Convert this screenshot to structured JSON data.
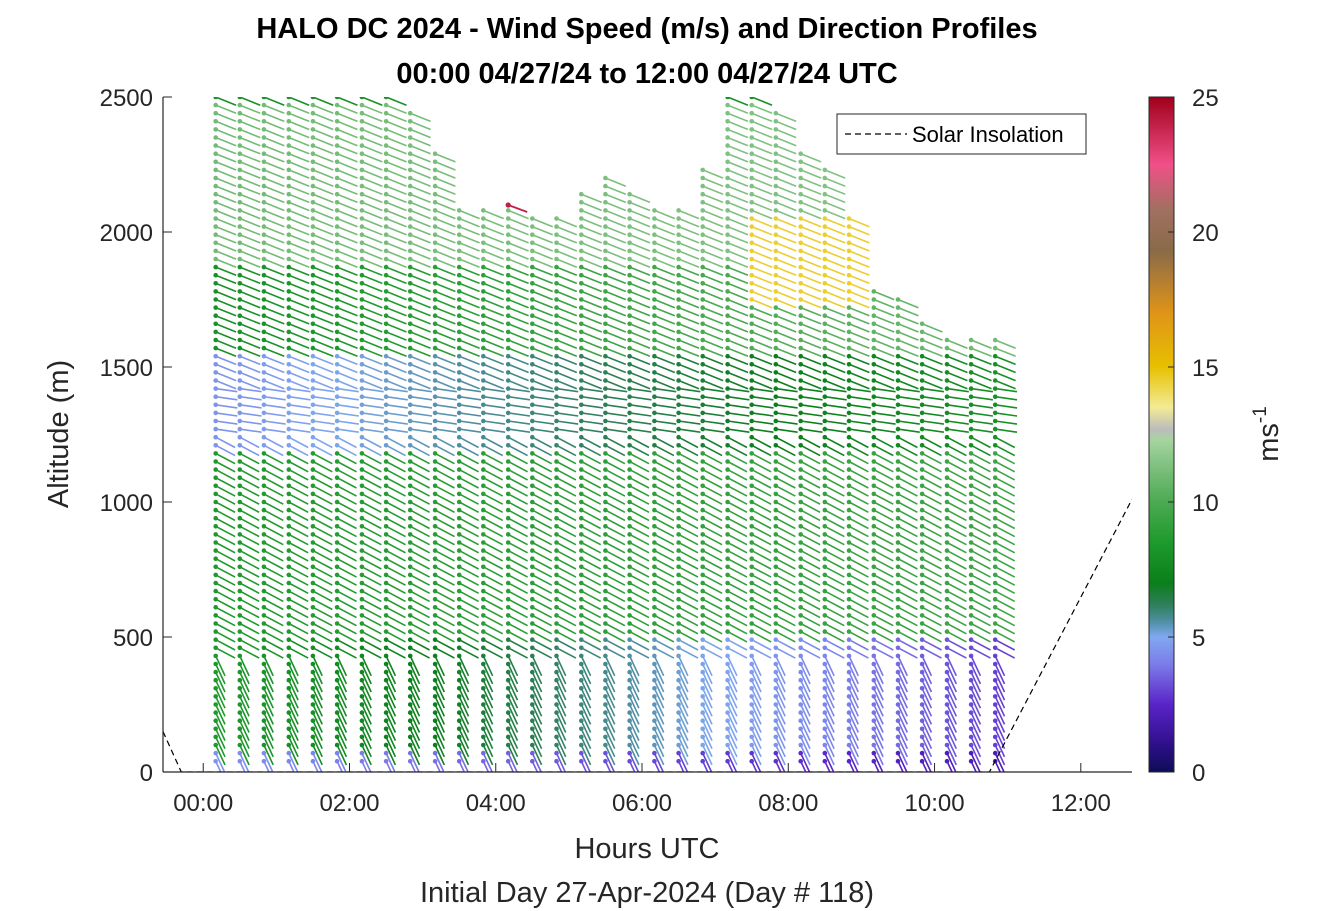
{
  "chart_data": {
    "type": "wind_barb_profile",
    "title": "HALO DC 2024 - Wind Speed (m/s) and Direction Profiles",
    "subtitle": "00:00 04/27/24 to 12:00 04/27/24  UTC",
    "xlabel": "Hours UTC",
    "xlabel2": "Initial Day 27-Apr-2024 (Day # 118)",
    "ylabel": "Altitude (m)",
    "colorbar_label": "ms",
    "colorbar_label_exp": "-1",
    "xlim": [
      -0.55,
      12.7
    ],
    "ylim": [
      0,
      2500
    ],
    "x_ticks": [
      0,
      2,
      4,
      6,
      8,
      10,
      12
    ],
    "x_tick_labels": [
      "00:00",
      "02:00",
      "04:00",
      "06:00",
      "08:00",
      "10:00",
      "12:00"
    ],
    "y_ticks": [
      0,
      500,
      1000,
      1500,
      2000,
      2500
    ],
    "y_tick_labels": [
      "0",
      "500",
      "1000",
      "1500",
      "2000",
      "2500"
    ],
    "colorbar_range": [
      0,
      25
    ],
    "colorbar_ticks": [
      0,
      5,
      10,
      15,
      20,
      25
    ],
    "colorbar_tick_labels": [
      "0",
      "5",
      "10",
      "15",
      "20",
      "25"
    ],
    "legend": {
      "entries": [
        "Solar Insolation"
      ],
      "location": "top-right"
    },
    "profile_times_hours": [
      0.17,
      0.5,
      0.83,
      1.17,
      1.5,
      1.83,
      2.17,
      2.5,
      2.83,
      3.17,
      3.5,
      3.83,
      4.17,
      4.5,
      4.83,
      5.17,
      5.5,
      5.83,
      6.17,
      6.5,
      6.83,
      7.17,
      7.5,
      7.83,
      8.17,
      8.5,
      8.83,
      9.17,
      9.5,
      9.83,
      10.17,
      10.5,
      10.83
    ],
    "profile_top_altitudes_m": [
      2500,
      2500,
      2500,
      2500,
      2500,
      2500,
      2500,
      2500,
      2450,
      2300,
      2100,
      2080,
      2100,
      2050,
      2050,
      2150,
      2200,
      2150,
      2100,
      2080,
      2250,
      2500,
      2500,
      2450,
      2300,
      2250,
      2050,
      1800,
      1750,
      1660,
      1620,
      1600,
      1600
    ],
    "speed_bands": [
      {
        "alt_range_m": [
          0,
          100
        ],
        "speed_early_ms": 4.5,
        "speed_late_ms": 2.0
      },
      {
        "alt_range_m": [
          100,
          500
        ],
        "speed_early_ms": 8.5,
        "speed_late_ms": 3.0
      },
      {
        "alt_range_m": [
          500,
          1200
        ],
        "speed_early_ms": 8.5,
        "speed_late_ms": 9.5
      },
      {
        "alt_range_m": [
          1200,
          1550
        ],
        "speed_early_ms": 4.5,
        "speed_late_ms": 8.0
      },
      {
        "alt_range_m": [
          1550,
          1900
        ],
        "speed_early_ms": 8.0,
        "speed_late_ms": 11.0
      },
      {
        "alt_range_m": [
          1900,
          2500
        ],
        "speed_early_ms": 11.0,
        "speed_late_ms": 11.5
      }
    ],
    "highlight": {
      "time_range_hours": [
        7.2,
        8.9
      ],
      "alt_range_m": [
        1750,
        2050
      ],
      "speed_ms": 14.5
    },
    "outlier": {
      "time_hours": 4.17,
      "alt_m": 2100,
      "speed_ms": 24
    },
    "solar_insolation": {
      "x": [
        -0.55,
        -0.3,
        10.75,
        12.7
      ],
      "y": [
        150,
        0,
        0,
        1010
      ]
    },
    "colormap": [
      {
        "v": 0,
        "c": "#0d0d55"
      },
      {
        "v": 1,
        "c": "#2e0f8a"
      },
      {
        "v": 2.5,
        "c": "#5a23c8"
      },
      {
        "v": 4,
        "c": "#7c7de8"
      },
      {
        "v": 5,
        "c": "#80a8f0"
      },
      {
        "v": 5.6,
        "c": "#4e8ea0"
      },
      {
        "v": 6.2,
        "c": "#2f7f5a"
      },
      {
        "v": 7,
        "c": "#0b7f1b"
      },
      {
        "v": 8.5,
        "c": "#1e9a2c"
      },
      {
        "v": 10,
        "c": "#4caa52"
      },
      {
        "v": 11.3,
        "c": "#7ec07f"
      },
      {
        "v": 12.3,
        "c": "#a6d49f"
      },
      {
        "v": 12.7,
        "c": "#bcbcbc"
      },
      {
        "v": 13.5,
        "c": "#f3eb96"
      },
      {
        "v": 15,
        "c": "#e7c000"
      },
      {
        "v": 17,
        "c": "#e09418"
      },
      {
        "v": 19.3,
        "c": "#8a6a48"
      },
      {
        "v": 20.8,
        "c": "#a07060"
      },
      {
        "v": 22.5,
        "c": "#f05088"
      },
      {
        "v": 25,
        "c": "#a0001a"
      }
    ]
  }
}
